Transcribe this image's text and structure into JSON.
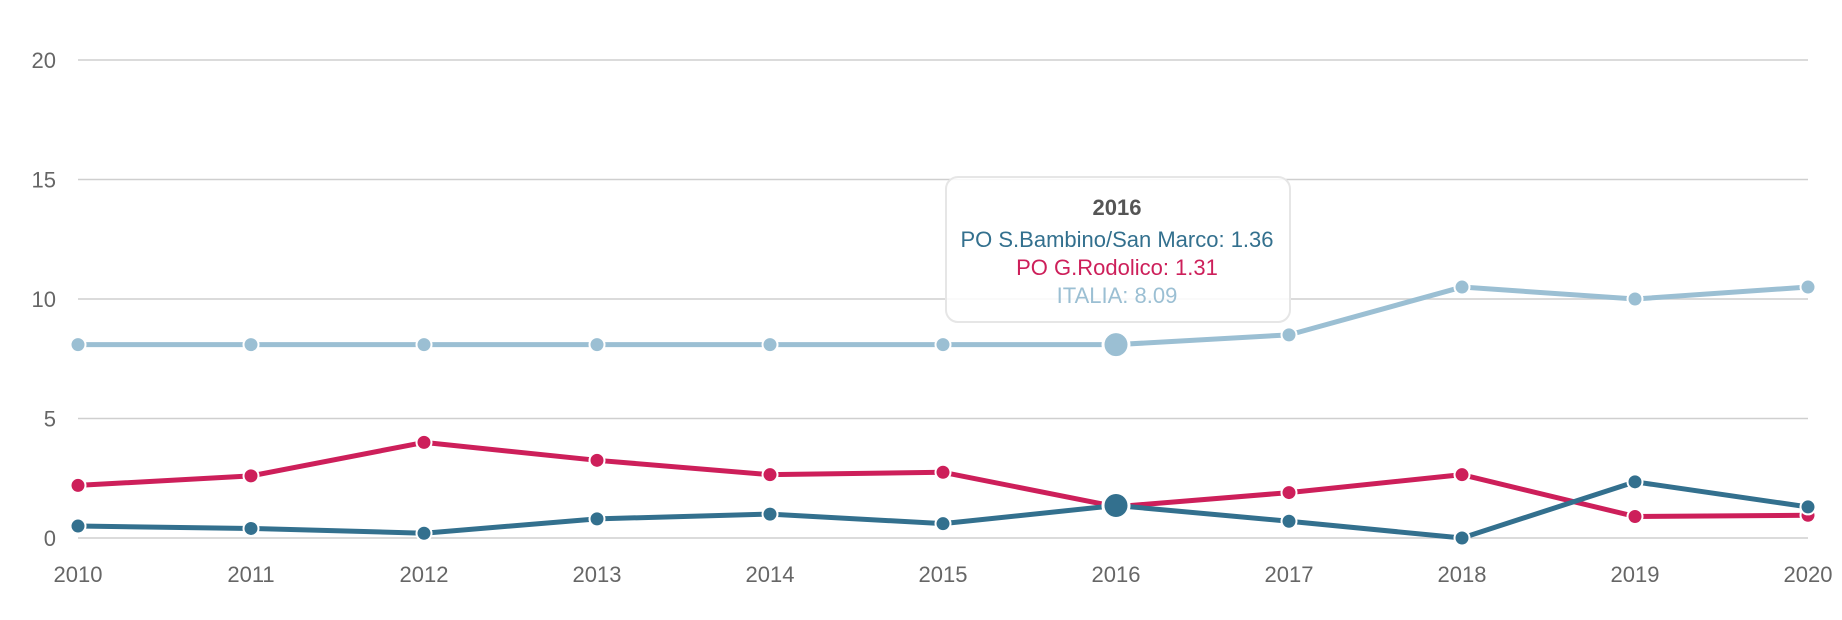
{
  "chart_data": {
    "type": "line",
    "categories": [
      "2010",
      "2011",
      "2012",
      "2013",
      "2014",
      "2015",
      "2016",
      "2017",
      "2018",
      "2019",
      "2020"
    ],
    "ylim": [
      0,
      20
    ],
    "yticks": [
      0,
      5,
      10,
      15,
      20
    ],
    "grid": true,
    "series": [
      {
        "name": "ITALIA",
        "color": "#9bbfd3",
        "values": [
          8.09,
          8.09,
          8.09,
          8.09,
          8.09,
          8.09,
          8.09,
          8.5,
          10.5,
          10.0,
          10.5
        ]
      },
      {
        "name": "PO G.Rodolico",
        "color": "#cd1f5a",
        "values": [
          2.2,
          2.6,
          4.0,
          3.25,
          2.65,
          2.75,
          1.31,
          1.9,
          2.65,
          0.9,
          0.95
        ]
      },
      {
        "name": "PO S.Bambino/San Marco",
        "color": "#33708e",
        "values": [
          0.5,
          0.4,
          0.2,
          0.8,
          1.0,
          0.6,
          1.36,
          0.7,
          0.0,
          2.35,
          1.3
        ]
      }
    ],
    "tooltip": {
      "category": "2016",
      "title": "2016",
      "lines": [
        {
          "text": "PO S.Bambino/San Marco: 1.36",
          "color": "#33708e"
        },
        {
          "text": "PO G.Rodolico: 1.31",
          "color": "#cd1f5a"
        },
        {
          "text": "ITALIA: 8.09",
          "color": "#9bbfd3"
        }
      ]
    }
  }
}
